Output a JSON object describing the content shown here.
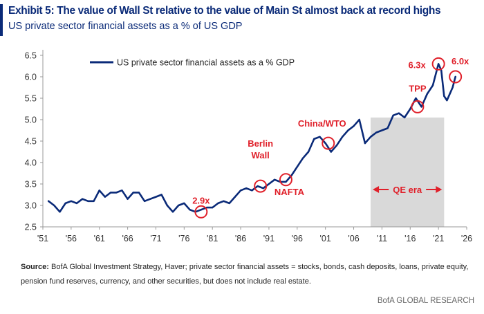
{
  "header": {
    "title": "Exhibit 5: The value of Wall St relative to the value of Main St almost back at record highs",
    "subtitle": "US private sector financial assets as a % of US GDP"
  },
  "chart_data": {
    "type": "line",
    "title": "",
    "xlabel": "",
    "ylabel": "",
    "ylim": [
      2.5,
      6.5
    ],
    "xlim": [
      1951,
      2026
    ],
    "y_ticks": [
      "2.5",
      "3.0",
      "3.5",
      "4.0",
      "4.5",
      "5.0",
      "5.5",
      "6.0",
      "6.5"
    ],
    "x_ticks": [
      "'51",
      "'56",
      "'61",
      "'66",
      "'71",
      "'76",
      "'81",
      "'86",
      "'91",
      "'96",
      "'01",
      "'06",
      "'11",
      "'16",
      "'21",
      "'26"
    ],
    "legend": {
      "label": "US private sector financial assets as a % GDP",
      "placement": "top-left"
    },
    "line_color": "#0a2a78",
    "series": [
      {
        "name": "US private sector financial assets as a % GDP",
        "x": [
          1952,
          1953,
          1954,
          1955,
          1956,
          1957,
          1958,
          1959,
          1960,
          1961,
          1962,
          1963,
          1964,
          1965,
          1966,
          1967,
          1968,
          1969,
          1970,
          1971,
          1972,
          1973,
          1974,
          1975,
          1976,
          1977,
          1978,
          1979,
          1980,
          1981,
          1982,
          1983,
          1984,
          1985,
          1986,
          1987,
          1988,
          1989,
          1990,
          1991,
          1992,
          1993,
          1994,
          1995,
          1996,
          1997,
          1998,
          1999,
          2000,
          2001,
          2002,
          2003,
          2004,
          2005,
          2006,
          2007,
          2008,
          2009,
          2010,
          2011,
          2012,
          2013,
          2014,
          2015,
          2016,
          2017,
          2018,
          2019,
          2020,
          2021,
          2021.5,
          2022,
          2022.5,
          2023,
          2023.5,
          2024
        ],
        "y": [
          3.1,
          3.0,
          2.85,
          3.05,
          3.1,
          3.05,
          3.15,
          3.1,
          3.1,
          3.35,
          3.2,
          3.3,
          3.3,
          3.35,
          3.15,
          3.3,
          3.3,
          3.1,
          3.15,
          3.2,
          3.25,
          3.0,
          2.85,
          3.0,
          3.05,
          2.9,
          2.85,
          2.9,
          2.95,
          2.95,
          3.05,
          3.1,
          3.05,
          3.2,
          3.35,
          3.4,
          3.35,
          3.45,
          3.4,
          3.5,
          3.6,
          3.55,
          3.55,
          3.7,
          3.9,
          4.1,
          4.25,
          4.55,
          4.6,
          4.45,
          4.25,
          4.4,
          4.6,
          4.75,
          4.85,
          5.0,
          4.45,
          4.6,
          4.7,
          4.75,
          4.8,
          5.1,
          5.15,
          5.05,
          5.25,
          5.5,
          5.3,
          5.6,
          5.8,
          6.3,
          6.15,
          5.55,
          5.45,
          5.6,
          5.75,
          6.0
        ]
      }
    ],
    "shaded_region": {
      "x_start": 2009,
      "x_end": 2022,
      "label": "QE era",
      "color": "#d9d9d9"
    },
    "annotations": [
      {
        "text": "2.9x",
        "x": 1979,
        "y": 2.85
      },
      {
        "text": "Berlin Wall",
        "x": 1989.5,
        "y": 3.45
      },
      {
        "text": "NAFTA",
        "x": 1994,
        "y": 3.6
      },
      {
        "text": "China/WTO",
        "x": 2001.5,
        "y": 4.45
      },
      {
        "text": "TPP",
        "x": 2017.3,
        "y": 5.3
      },
      {
        "text": "6.3x",
        "x": 2021,
        "y": 6.3
      },
      {
        "text": "6.0x",
        "x": 2024,
        "y": 6.0
      }
    ],
    "annotation_color": "#e0202a"
  },
  "source": {
    "label": "Source:",
    "text": "BofA Global Investment Strategy, Haver; private sector financial assets = stocks, bonds, cash deposits, loans, private equity, pension fund reserves, currency, and other securities, but does not include real estate."
  },
  "footer": {
    "brand": "BofA GLOBAL RESEARCH"
  }
}
